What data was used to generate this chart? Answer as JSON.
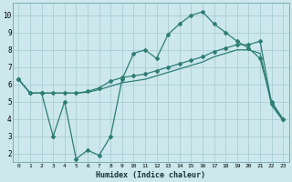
{
  "xlabel": "Humidex (Indice chaleur)",
  "background_color": "#cce8ec",
  "grid_color": "#aacdd4",
  "line_color": "#2d7d74",
  "xlim": [
    -0.5,
    23.5
  ],
  "ylim": [
    1.5,
    10.7
  ],
  "yticks": [
    2,
    3,
    4,
    5,
    6,
    7,
    8,
    9,
    10
  ],
  "xticks": [
    0,
    1,
    2,
    3,
    4,
    5,
    6,
    7,
    8,
    9,
    10,
    11,
    12,
    13,
    14,
    15,
    16,
    17,
    18,
    19,
    20,
    21,
    22,
    23
  ],
  "line1_x": [
    0,
    1,
    2,
    3,
    4,
    5,
    6,
    7,
    8,
    9,
    10,
    11,
    12,
    13,
    14,
    15,
    16,
    17,
    18,
    19,
    20,
    21,
    22,
    23
  ],
  "line1_y": [
    6.3,
    5.5,
    5.5,
    3.0,
    5.0,
    1.7,
    2.2,
    1.9,
    3.0,
    6.3,
    7.8,
    8.0,
    7.5,
    8.9,
    9.5,
    10.0,
    10.2,
    9.5,
    9.0,
    8.5,
    8.1,
    7.5,
    5.0,
    4.0
  ],
  "line2_x": [
    0,
    1,
    2,
    3,
    4,
    5,
    6,
    7,
    8,
    9,
    10,
    11,
    12,
    13,
    14,
    15,
    16,
    17,
    18,
    19,
    20,
    21,
    22,
    23
  ],
  "line2_y": [
    6.3,
    5.5,
    5.5,
    5.5,
    5.5,
    5.5,
    5.6,
    5.8,
    6.2,
    6.4,
    6.5,
    6.6,
    6.8,
    7.0,
    7.2,
    7.4,
    7.6,
    7.9,
    8.1,
    8.3,
    8.3,
    8.5,
    4.9,
    4.0
  ],
  "line3_x": [
    0,
    1,
    2,
    3,
    4,
    5,
    6,
    7,
    8,
    9,
    10,
    11,
    12,
    13,
    14,
    15,
    16,
    17,
    18,
    19,
    20,
    21,
    22,
    23
  ],
  "line3_y": [
    6.3,
    5.5,
    5.5,
    5.5,
    5.5,
    5.5,
    5.55,
    5.7,
    5.9,
    6.1,
    6.2,
    6.3,
    6.5,
    6.7,
    6.9,
    7.1,
    7.3,
    7.6,
    7.8,
    8.0,
    8.0,
    7.8,
    4.8,
    3.9
  ]
}
